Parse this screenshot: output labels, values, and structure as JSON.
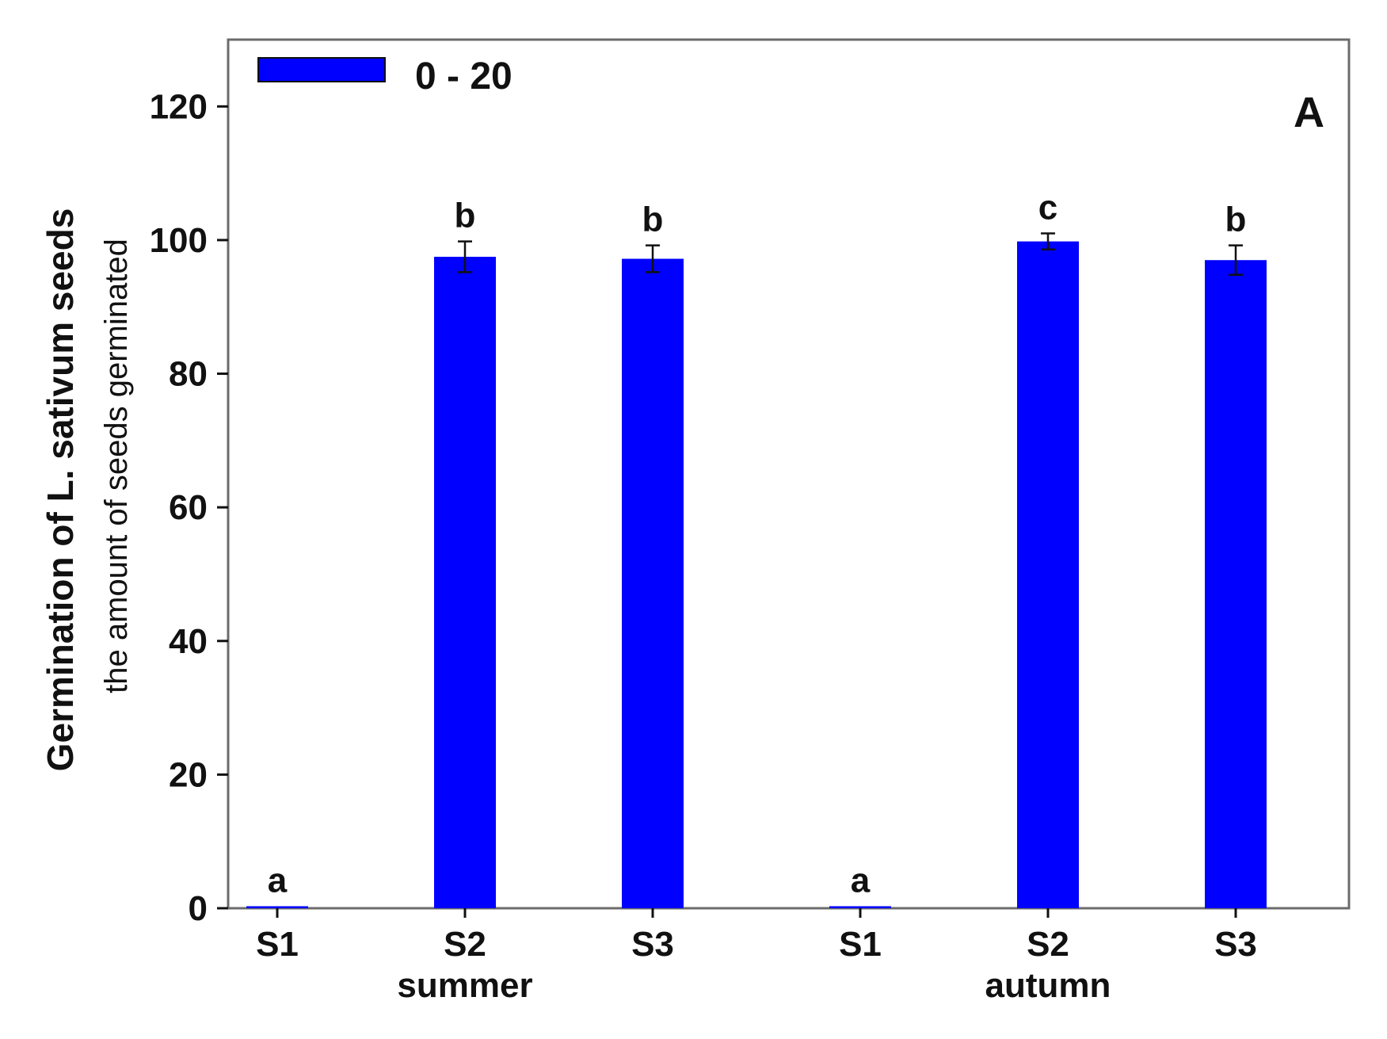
{
  "chart_data": {
    "type": "bar",
    "panel_label": "A",
    "ylabel": "Germination of L. sativum seeds",
    "ylabel_sub": "the amount of seeds germinated",
    "xlabel": "",
    "ylim": [
      0,
      130
    ],
    "yticks": [
      0,
      20,
      40,
      60,
      80,
      100,
      120
    ],
    "grid": false,
    "legend_position": "top-left",
    "categories": [
      "S1",
      "S2",
      "S3",
      "S1",
      "S2",
      "S3"
    ],
    "groups": [
      {
        "label": "summer",
        "category_indices": [
          0,
          1,
          2
        ]
      },
      {
        "label": "autumn",
        "category_indices": [
          3,
          4,
          5
        ]
      }
    ],
    "series": [
      {
        "name": "0 - 20",
        "color": "#0000ff",
        "values": [
          0.3,
          97.5,
          97.2,
          0.3,
          99.8,
          97.0
        ],
        "errors": [
          0,
          2.3,
          2.0,
          0,
          1.2,
          2.2
        ],
        "significance": [
          "a",
          "b",
          "b",
          "a",
          "c",
          "b"
        ]
      }
    ]
  }
}
